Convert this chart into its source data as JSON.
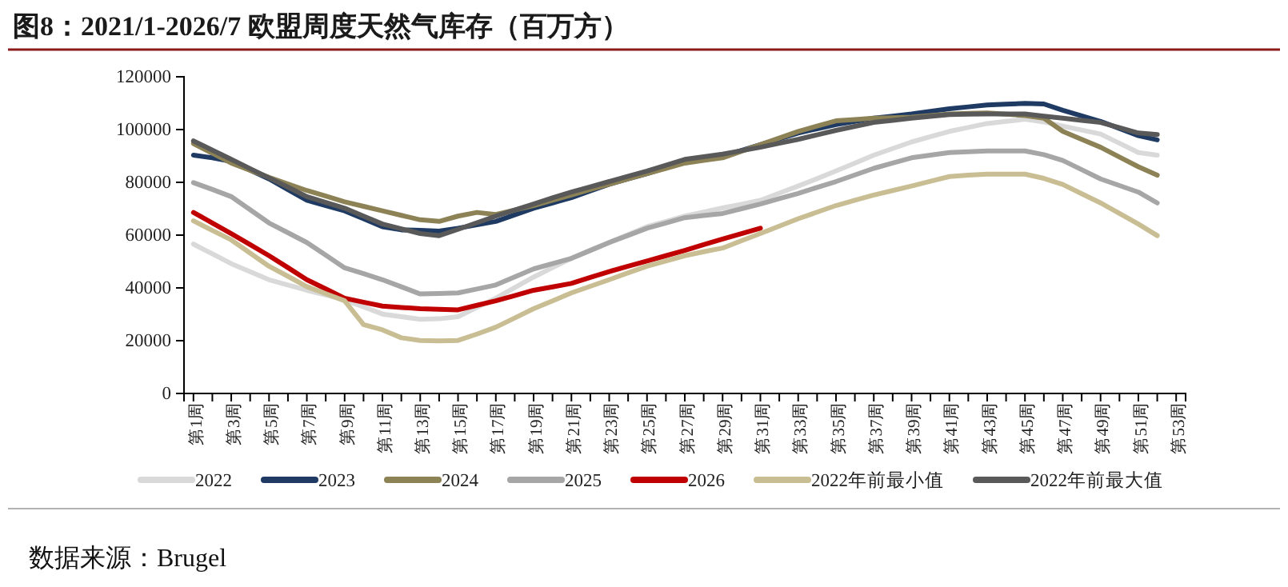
{
  "chart_data": {
    "type": "line",
    "title": "图8：2021/1-2026/7 欧盟周度天然气库存（百万方）",
    "annotations": [
      "数据来源：Brugel"
    ],
    "categories": [
      "第1周",
      null,
      "第3周",
      null,
      "第5周",
      null,
      "第7周",
      null,
      "第9周",
      null,
      "第11周",
      null,
      "第13周",
      null,
      "第15周",
      null,
      "第17周",
      null,
      "第19周",
      null,
      "第21周",
      null,
      "第23周",
      null,
      "第25周",
      null,
      "第27周",
      null,
      "第29周",
      null,
      "第31周",
      null,
      "第33周",
      null,
      "第35周",
      null,
      "第37周",
      null,
      "第39周",
      null,
      "第41周",
      null,
      "第43周",
      null,
      "第45周",
      null,
      "第47周",
      null,
      "第49周",
      null,
      "第51周",
      null,
      "第53周"
    ],
    "ylim": [
      0,
      120000
    ],
    "yticks": [
      0,
      20000,
      40000,
      60000,
      80000,
      100000,
      120000
    ],
    "grid": false,
    "legend": "bottom",
    "series": [
      {
        "name": "2022",
        "color": "#d9d9d9",
        "values": [
          56600,
          52900,
          49200,
          46100,
          43100,
          41100,
          39100,
          37300,
          35500,
          32800,
          30100,
          29100,
          28100,
          28300,
          29100,
          32600,
          36100,
          40100,
          44100,
          47700,
          51200,
          54200,
          57200,
          60200,
          63200,
          65200,
          67200,
          68700,
          70300,
          71700,
          73200,
          75900,
          78600,
          81400,
          84300,
          87300,
          90300,
          92800,
          95300,
          97300,
          99300,
          100800,
          102300,
          103100,
          103900,
          102900,
          101300,
          99800,
          98300,
          94800,
          91300,
          90300,
          null
        ]
      },
      {
        "name": "2023",
        "color": "#1f3b64",
        "values": [
          90300,
          89300,
          87900,
          84600,
          81300,
          77200,
          73200,
          71200,
          69200,
          66200,
          63200,
          62000,
          61800,
          61500,
          62600,
          63900,
          65200,
          67700,
          70200,
          72200,
          74200,
          76800,
          79300,
          81300,
          83300,
          85600,
          87900,
          88900,
          89900,
          92100,
          94300,
          96500,
          98700,
          100300,
          101900,
          103100,
          104300,
          105100,
          105900,
          106900,
          107900,
          108600,
          109300,
          109600,
          109900,
          109700,
          107300,
          105200,
          103100,
          100400,
          97700,
          96100,
          null
        ]
      },
      {
        "name": "2024",
        "color": "#8c8256",
        "values": [
          94700,
          91000,
          87300,
          84600,
          81900,
          79400,
          76900,
          74800,
          72600,
          70900,
          69200,
          67500,
          65800,
          65200,
          67200,
          68600,
          67800,
          69500,
          71200,
          73200,
          75200,
          77300,
          79300,
          81300,
          83300,
          85300,
          87300,
          88300,
          89300,
          91800,
          94300,
          96800,
          99300,
          101300,
          103300,
          103800,
          104300,
          104500,
          104700,
          105300,
          105900,
          106100,
          106300,
          105800,
          105300,
          104300,
          99300,
          96300,
          93300,
          89600,
          85900,
          82700,
          null
        ]
      },
      {
        "name": "2025",
        "color": "#a6a6a6",
        "values": [
          79900,
          77300,
          74600,
          69600,
          64600,
          60900,
          57200,
          52400,
          47600,
          45400,
          43100,
          40400,
          37700,
          37900,
          38100,
          39600,
          41100,
          44200,
          47200,
          49200,
          51200,
          54200,
          57200,
          59900,
          62600,
          64600,
          66600,
          67400,
          68200,
          70000,
          71800,
          73800,
          75800,
          78100,
          80300,
          82800,
          85300,
          87300,
          89300,
          90300,
          91300,
          91600,
          91900,
          91900,
          91900,
          90500,
          88300,
          84800,
          81300,
          78800,
          76300,
          72200,
          null
        ]
      },
      {
        "name": "2026",
        "color": "#c00000",
        "values": [
          68600,
          64600,
          60600,
          56400,
          52200,
          47700,
          43100,
          39600,
          36100,
          34600,
          33100,
          32600,
          32100,
          31900,
          31700,
          33400,
          35100,
          37100,
          39100,
          40400,
          41700,
          44000,
          46200,
          48200,
          50200,
          52200,
          54200,
          56400,
          58500,
          60600,
          62600,
          null,
          null,
          null,
          null,
          null,
          null,
          null,
          null,
          null,
          null,
          null,
          null,
          null,
          null,
          null,
          null,
          null,
          null,
          null,
          null,
          null,
          null
        ]
      },
      {
        "name": "2022年前最小值",
        "color": "#c9bd93",
        "values": [
          65400,
          61800,
          58200,
          53200,
          48200,
          44400,
          40500,
          37800,
          35100,
          26100,
          24100,
          21100,
          20100,
          19900,
          20100,
          22500,
          25100,
          28600,
          32100,
          35100,
          38100,
          40600,
          43100,
          45700,
          48200,
          50200,
          52200,
          53700,
          55100,
          57900,
          60600,
          63400,
          66200,
          68700,
          71200,
          73200,
          75200,
          76900,
          78600,
          80400,
          82200,
          82700,
          83100,
          83100,
          83100,
          81500,
          79200,
          75700,
          72200,
          68200,
          64200,
          59800,
          null
        ]
      },
      {
        "name": "2022年前最大值",
        "color": "#595959",
        "values": [
          95700,
          92200,
          88700,
          85200,
          81700,
          78200,
          74600,
          72400,
          70200,
          67200,
          64200,
          62400,
          60600,
          59800,
          62200,
          64700,
          67200,
          69500,
          71800,
          74100,
          76300,
          78300,
          80300,
          82300,
          84300,
          86500,
          88700,
          89700,
          90700,
          92000,
          93300,
          94800,
          96300,
          98000,
          99700,
          101200,
          102700,
          103500,
          104300,
          105000,
          105700,
          105800,
          105900,
          105900,
          105900,
          105100,
          104300,
          103500,
          102700,
          100700,
          98700,
          98100,
          null
        ]
      }
    ]
  }
}
